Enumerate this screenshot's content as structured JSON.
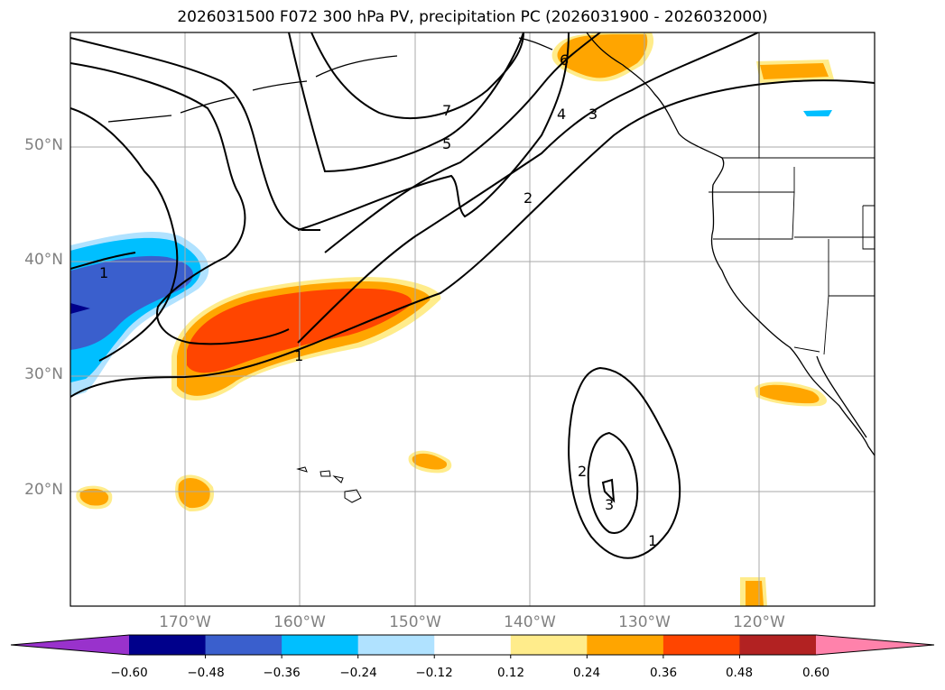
{
  "title": "2026031500 F072 300 hPa PV, precipitation PC (2026031900 - 2026032000)",
  "latitude_labels": [
    "50°N",
    "40°N",
    "30°N",
    "20°N"
  ],
  "longitude_labels": [
    "170°W",
    "160°W",
    "150°W",
    "140°W",
    "130°W",
    "120°W"
  ],
  "contour_labels": [
    "7",
    "5",
    "4",
    "3",
    "2",
    "1",
    "1",
    "6",
    "2",
    "3",
    "1"
  ],
  "colorbar": {
    "ticks": [
      "−0.60",
      "−0.48",
      "−0.36",
      "−0.24",
      "−0.12",
      "0.12",
      "0.24",
      "0.36",
      "0.48",
      "0.60"
    ],
    "colors": [
      "#9932cc",
      "#00008b",
      "#3a5fcd",
      "#00bfff",
      "#b0e2ff",
      "#ffffff",
      "#ffec8b",
      "#ffa500",
      "#ff4500",
      "#b22222",
      "#ff82ab"
    ]
  }
}
